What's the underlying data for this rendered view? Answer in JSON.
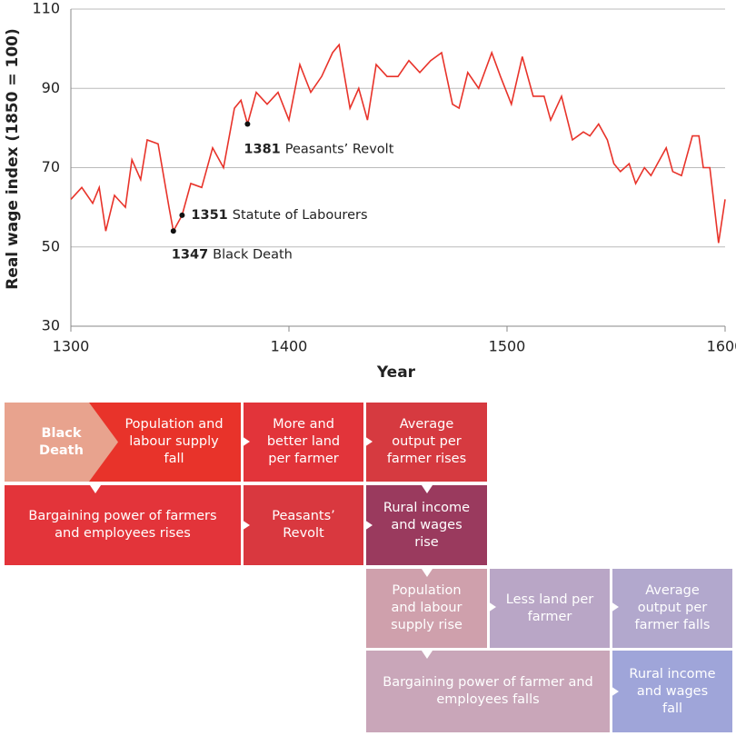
{
  "chart_data": {
    "type": "line",
    "ylabel": "Real wage index (1850 = 100)",
    "xlabel": "Year",
    "xlim": [
      1300,
      1600
    ],
    "xticks": [
      1300,
      1400,
      1500,
      1600
    ],
    "ylim": [
      30,
      110
    ],
    "yticks": [
      30,
      50,
      70,
      90,
      110
    ],
    "grid": true,
    "series": [
      {
        "color": "#e8332a",
        "x": [
          1300,
          1305,
          1310,
          1313,
          1316,
          1320,
          1325,
          1328,
          1332,
          1335,
          1340,
          1345,
          1347,
          1351,
          1355,
          1360,
          1365,
          1370,
          1375,
          1378,
          1381,
          1385,
          1390,
          1395,
          1400,
          1405,
          1410,
          1415,
          1420,
          1423,
          1428,
          1432,
          1436,
          1440,
          1445,
          1450,
          1455,
          1460,
          1465,
          1470,
          1475,
          1478,
          1482,
          1487,
          1493,
          1497,
          1502,
          1507,
          1512,
          1517,
          1520,
          1525,
          1530,
          1535,
          1538,
          1542,
          1546,
          1549,
          1552,
          1556,
          1559,
          1563,
          1566,
          1570,
          1573,
          1576,
          1580,
          1582,
          1585,
          1588,
          1590,
          1593,
          1597,
          1600
        ],
        "values": [
          62,
          65,
          61,
          65,
          54,
          63,
          60,
          72,
          67,
          77,
          76,
          60,
          54,
          58,
          66,
          65,
          75,
          70,
          85,
          87,
          81,
          89,
          86,
          89,
          82,
          96,
          89,
          93,
          99,
          101,
          85,
          90,
          82,
          96,
          93,
          93,
          97,
          94,
          97,
          99,
          86,
          85,
          94,
          90,
          99,
          93,
          86,
          98,
          88,
          88,
          82,
          88,
          77,
          79,
          78,
          81,
          77,
          71,
          69,
          71,
          66,
          70,
          68,
          72,
          75,
          69,
          68,
          72,
          78,
          78,
          70,
          70,
          51,
          62
        ]
      }
    ],
    "annotations": [
      {
        "x": 1347,
        "y": 54,
        "label": "1347",
        "text": "Black Death"
      },
      {
        "x": 1351,
        "y": 58,
        "label": "1351",
        "text": "Statute of Labourers"
      },
      {
        "x": 1381,
        "y": 81,
        "label": "1381",
        "text": "Peasants’ Revolt"
      }
    ]
  },
  "diagram": {
    "boxes": [
      {
        "label": "Black Death",
        "color": "#e8a38e"
      },
      {
        "label": "Population and labour supply fall",
        "color": "#e8332a"
      },
      {
        "label": "More and better land per farmer",
        "color": "#e2343a"
      },
      {
        "label": "Average output per farmer rises",
        "color": "#d63a40"
      },
      {
        "label": "Bargaining power of farmers and employees rises",
        "color": "#e3343a"
      },
      {
        "label": "Peasants’ Revolt",
        "color": "#d9383f"
      },
      {
        "label": "Rural income and wages rise",
        "color": "#9a3a5e"
      },
      {
        "label": "Population and labour supply rise",
        "color": "#cfa0ac"
      },
      {
        "label": "Less land per farmer",
        "color": "#b9a6c6"
      },
      {
        "label": "Average output per farmer falls",
        "color": "#b2a8cd"
      },
      {
        "label": "Bargaining power of farmer and employees falls",
        "color": "#c9a6b9"
      },
      {
        "label": "Rural income and wages fall",
        "color": "#9fa5d9"
      }
    ]
  }
}
